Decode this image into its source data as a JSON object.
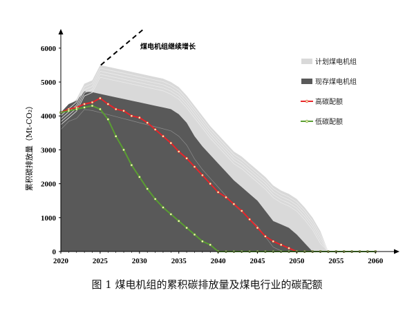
{
  "caption": "图 1 煤电机组的累积碳排放量及煤电行业的碳配额",
  "chart_data": {
    "type": "area",
    "title": "",
    "xlabel": "",
    "ylabel": "累积碳排放量（Mt-CO₂）",
    "xlim": [
      2020,
      2062
    ],
    "ylim": [
      0,
      6200
    ],
    "xticks": [
      2020,
      2025,
      2030,
      2035,
      2040,
      2045,
      2050,
      2055,
      2060
    ],
    "yticks": [
      0,
      1000,
      2000,
      3000,
      4000,
      5000,
      6000
    ],
    "annotation": "煤电机组继续增长",
    "legend_position": "right",
    "x": [
      2020,
      2021,
      2022,
      2023,
      2024,
      2025,
      2026,
      2027,
      2028,
      2029,
      2030,
      2031,
      2032,
      2033,
      2034,
      2035,
      2036,
      2037,
      2038,
      2039,
      2040,
      2041,
      2042,
      2043,
      2044,
      2045,
      2046,
      2047,
      2048,
      2049,
      2050,
      2051,
      2052,
      2053,
      2054,
      2055,
      2056,
      2057,
      2058,
      2059,
      2060
    ],
    "series": [
      {
        "name": "计划煤电机组",
        "kind": "area",
        "color": "#d9d9d9",
        "values": [
          4100,
          4300,
          4500,
          4950,
          5050,
          5500,
          5450,
          5400,
          5350,
          5300,
          5250,
          5200,
          5150,
          5100,
          5000,
          4850,
          4600,
          4300,
          4000,
          3700,
          3450,
          3200,
          2950,
          2800,
          2600,
          2400,
          2200,
          1950,
          1800,
          1700,
          1550,
          1300,
          1000,
          600,
          0,
          0,
          0,
          0,
          0,
          0,
          0
        ]
      },
      {
        "name": "现存煤电机组",
        "kind": "area",
        "color": "#595959",
        "values": [
          4100,
          4350,
          4450,
          4720,
          4700,
          4650,
          4600,
          4550,
          4500,
          4450,
          4400,
          4350,
          4300,
          4250,
          4200,
          4050,
          3800,
          3400,
          3100,
          2850,
          2600,
          2350,
          2100,
          1900,
          1700,
          1500,
          1200,
          900,
          800,
          700,
          500,
          250,
          0,
          0,
          0,
          0,
          0,
          0,
          0,
          0,
          0
        ]
      },
      {
        "name": "高碳配额",
        "kind": "line",
        "color": "#e8252a",
        "values": [
          4100,
          4200,
          4250,
          4350,
          4400,
          4520,
          4350,
          4200,
          4150,
          4000,
          3950,
          3800,
          3600,
          3400,
          3200,
          2950,
          2750,
          2500,
          2250,
          2000,
          1750,
          1600,
          1400,
          1200,
          950,
          700,
          450,
          300,
          200,
          100,
          0,
          0,
          0,
          0,
          0,
          0,
          0,
          0,
          0,
          0,
          0
        ]
      },
      {
        "name": "低碳配额",
        "kind": "line",
        "color": "#5a9e32",
        "values": [
          4100,
          4150,
          4200,
          4250,
          4300,
          4200,
          3900,
          3400,
          3000,
          2550,
          2200,
          1850,
          1550,
          1300,
          1100,
          900,
          700,
          500,
          300,
          200,
          0,
          0,
          0,
          0,
          0,
          0,
          0,
          0,
          0,
          0,
          0,
          0,
          0,
          0,
          0,
          0,
          0,
          0,
          0,
          0,
          0
        ]
      }
    ]
  }
}
